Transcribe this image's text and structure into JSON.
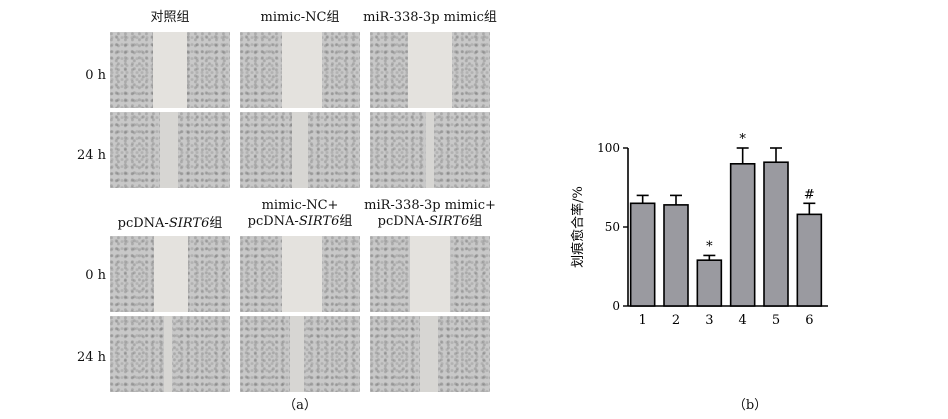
{
  "panel_a": {
    "caption": "（a）",
    "rows": [
      "0 h",
      "24 h",
      "0 h",
      "24 h"
    ],
    "groups": [
      {
        "label": "对照组"
      },
      {
        "label": "mimic-NC组"
      },
      {
        "label": "miR-338-3p mimic组"
      },
      {
        "label_line1": "pcDNA-",
        "label_italic": "SIRT6",
        "label_tail": "组"
      },
      {
        "label_line1": "mimic-NC+",
        "label_line2a": "pcDNA-",
        "label_italic": "SIRT6",
        "label_tail": "组"
      },
      {
        "label_line1": "miR-338-3p mimic+",
        "label_line2a": "pcDNA-",
        "label_italic": "SIRT6",
        "label_tail": "组"
      }
    ]
  },
  "panel_b": {
    "caption": "（b）"
  },
  "chart_data": {
    "type": "bar",
    "categories": [
      "1",
      "2",
      "3",
      "4",
      "5",
      "6"
    ],
    "values": [
      65,
      64,
      29,
      90,
      91,
      58
    ],
    "errors": [
      5,
      6,
      3,
      10,
      9,
      7
    ],
    "annotations": [
      "",
      "",
      "*",
      "*",
      "",
      "#"
    ],
    "ylabel": "划痕愈合率/%",
    "yticks": [
      0,
      50,
      100
    ],
    "ylim": [
      0,
      100
    ],
    "bar_color": "#9a9aa0"
  }
}
